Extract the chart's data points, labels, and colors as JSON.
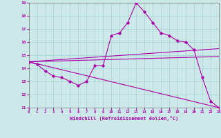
{
  "title": "",
  "xlabel": "Windchill (Refroidissement éolien,°C)",
  "ylabel": "",
  "xlim": [
    0,
    23
  ],
  "ylim": [
    11,
    19
  ],
  "yticks": [
    11,
    12,
    13,
    14,
    15,
    16,
    17,
    18,
    19
  ],
  "xticks": [
    0,
    1,
    2,
    3,
    4,
    5,
    6,
    7,
    8,
    9,
    10,
    11,
    12,
    13,
    14,
    15,
    16,
    17,
    18,
    19,
    20,
    21,
    22,
    23
  ],
  "bg_color": "#cce8e8",
  "line_color": "#aa00aa",
  "series": {
    "line1_x": [
      0,
      1,
      2,
      3,
      4,
      5,
      6,
      7,
      8,
      9,
      10,
      11,
      12,
      13,
      14,
      15,
      16,
      17,
      18,
      19,
      20,
      21,
      22,
      23
    ],
    "line1_y": [
      14.5,
      14.3,
      13.8,
      13.4,
      13.3,
      13.0,
      12.7,
      13.0,
      14.2,
      14.2,
      16.5,
      16.7,
      17.5,
      19.0,
      18.3,
      17.5,
      16.7,
      16.5,
      16.1,
      16.0,
      15.4,
      13.3,
      11.5,
      11.0
    ],
    "line2_x": [
      0,
      23
    ],
    "line2_y": [
      14.5,
      15.5
    ],
    "line3_x": [
      0,
      23
    ],
    "line3_y": [
      14.5,
      14.9
    ],
    "line4_x": [
      0,
      23
    ],
    "line4_y": [
      14.5,
      11.0
    ]
  }
}
